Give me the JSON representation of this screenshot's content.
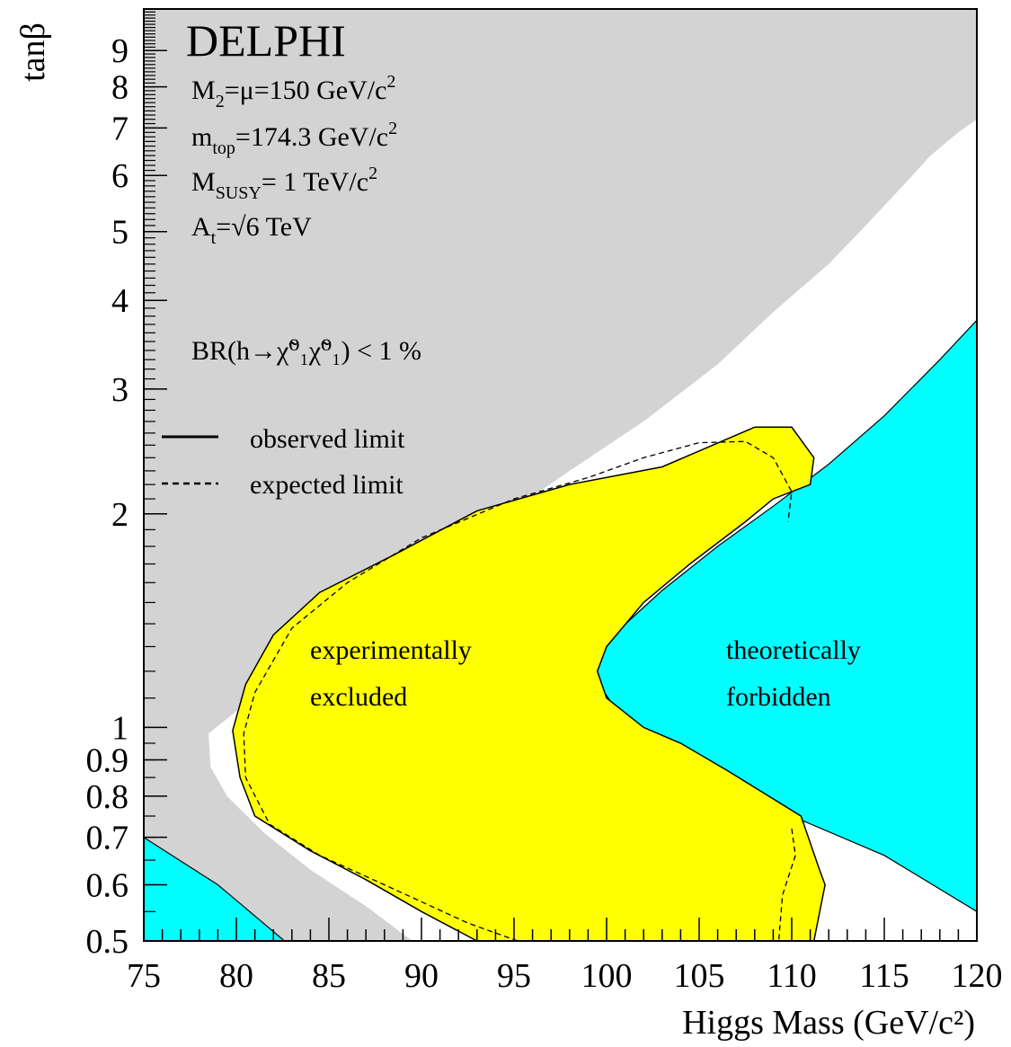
{
  "chart_data": {
    "type": "area",
    "title": "DELPHI",
    "xlabel": "Higgs Mass (GeV/c²)",
    "ylabel": "tanβ",
    "xlim": [
      75,
      120
    ],
    "ylim": [
      0.5,
      10.3
    ],
    "yscale": "log",
    "grid": false,
    "x_ticks": [
      "75",
      "80",
      "85",
      "90",
      "95",
      "100",
      "105",
      "110",
      "115",
      "120"
    ],
    "y_ticks": [
      "0.5",
      "0.6",
      "0.7",
      "0.8",
      "0.9",
      "1",
      "2",
      "3",
      "4",
      "5",
      "6",
      "7",
      "8",
      "9"
    ],
    "parameters": [
      {
        "main": "M",
        "sub": "2",
        "rest": "=μ=150 GeV/c",
        "sup": "2"
      },
      {
        "main": "m",
        "sub": "top",
        "rest": "=174.3 GeV/c",
        "sup": "2"
      },
      {
        "main": "M",
        "sub": "SUSY",
        "rest": "= 1 TeV/c",
        "sup": "2"
      },
      {
        "main": "A",
        "sub": "t",
        "rest": "=√6 TeV",
        "sup": ""
      }
    ],
    "br_label": "BR(h→χ̃⁰₁χ̃⁰₁) < 1 %",
    "legend": {
      "placement": "left",
      "entries": [
        {
          "label": "observed limit",
          "style": "solid"
        },
        {
          "label": "expected limit",
          "style": "dashed"
        }
      ]
    },
    "region_labels": {
      "experimental": [
        "experimentally",
        "excluded"
      ],
      "theoretical": [
        "theoretically",
        "forbidden"
      ]
    },
    "colors": {
      "grey": "#d3d3d3",
      "yellow": "#ffff00",
      "cyan": "#00ffff",
      "white": "#ffffff"
    },
    "regions": {
      "grey_upper": {
        "color": "grey",
        "points": [
          [
            75,
            10.3
          ],
          [
            120,
            10.3
          ],
          [
            120,
            7.2
          ],
          [
            119,
            6.9
          ],
          [
            117.5,
            6.4
          ],
          [
            116,
            5.8
          ],
          [
            114,
            5.1
          ],
          [
            112,
            4.5
          ],
          [
            109,
            3.85
          ],
          [
            106,
            3.25
          ],
          [
            102,
            2.7
          ],
          [
            98,
            2.3
          ],
          [
            94,
            1.95
          ],
          [
            90,
            1.62
          ],
          [
            86,
            1.38
          ],
          [
            83,
            1.2
          ],
          [
            80.5,
            1.08
          ],
          [
            78.5,
            0.98
          ],
          [
            78.6,
            0.88
          ],
          [
            79.5,
            0.8
          ],
          [
            81.5,
            0.71
          ],
          [
            84,
            0.63
          ],
          [
            87,
            0.56
          ],
          [
            89.5,
            0.5
          ],
          [
            75,
            0.5
          ]
        ]
      },
      "cyan_theory": {
        "color": "cyan",
        "points": [
          [
            120,
            3.75
          ],
          [
            118,
            3.3
          ],
          [
            115,
            2.75
          ],
          [
            112,
            2.35
          ],
          [
            109,
            2.05
          ],
          [
            106,
            1.8
          ],
          [
            103,
            1.56
          ],
          [
            100.5,
            1.36
          ],
          [
            99.5,
            1.25
          ],
          [
            99.5,
            1.16
          ],
          [
            100.5,
            1.06
          ],
          [
            103,
            0.95
          ],
          [
            106,
            0.85
          ],
          [
            110,
            0.75
          ],
          [
            115,
            0.66
          ],
          [
            120,
            0.55
          ],
          [
            120,
            3.75
          ]
        ]
      },
      "cyan_corner": {
        "color": "cyan",
        "points": [
          [
            75,
            0.7
          ],
          [
            79,
            0.6
          ],
          [
            82.6,
            0.5
          ],
          [
            75,
            0.5
          ]
        ]
      },
      "yellow_excluded": {
        "color": "yellow",
        "points": [
          [
            108,
            2.65
          ],
          [
            110,
            2.65
          ],
          [
            111.2,
            2.4
          ],
          [
            111,
            2.2
          ],
          [
            109,
            2.1
          ],
          [
            107.5,
            1.95
          ],
          [
            104.5,
            1.7
          ],
          [
            102,
            1.5
          ],
          [
            100,
            1.3
          ],
          [
            99.5,
            1.2
          ],
          [
            100,
            1.1
          ],
          [
            102,
            1.0
          ],
          [
            104,
            0.95
          ],
          [
            106.5,
            0.87
          ],
          [
            110.5,
            0.75
          ],
          [
            111.5,
            0.63
          ],
          [
            111.8,
            0.6
          ],
          [
            111.2,
            0.5
          ],
          [
            93,
            0.5
          ],
          [
            90,
            0.55
          ],
          [
            87,
            0.61
          ],
          [
            84,
            0.67
          ],
          [
            81,
            0.75
          ],
          [
            80.2,
            0.85
          ],
          [
            79.8,
            0.99
          ],
          [
            80.5,
            1.15
          ],
          [
            82,
            1.35
          ],
          [
            84.5,
            1.55
          ],
          [
            88.5,
            1.75
          ],
          [
            93,
            2.02
          ],
          [
            98,
            2.2
          ],
          [
            103,
            2.33
          ],
          [
            108,
            2.65
          ]
        ]
      }
    },
    "series": [
      {
        "name": "observed limit",
        "style": "solid",
        "points": [
          [
            108,
            2.65
          ],
          [
            110,
            2.65
          ],
          [
            111.2,
            2.4
          ],
          [
            111,
            2.2
          ],
          [
            109,
            2.1
          ],
          [
            107.5,
            1.95
          ],
          [
            104.5,
            1.7
          ],
          [
            102,
            1.5
          ],
          [
            100,
            1.3
          ],
          [
            99.5,
            1.2
          ],
          [
            100,
            1.1
          ],
          [
            102,
            1.0
          ],
          [
            104,
            0.95
          ],
          [
            106.5,
            0.87
          ],
          [
            110.5,
            0.75
          ],
          [
            111.5,
            0.63
          ],
          [
            111.8,
            0.6
          ],
          [
            111.2,
            0.5
          ],
          [
            93,
            0.5
          ],
          [
            90,
            0.55
          ],
          [
            87,
            0.61
          ],
          [
            84,
            0.67
          ],
          [
            81,
            0.75
          ],
          [
            80.2,
            0.85
          ],
          [
            79.8,
            0.99
          ],
          [
            80.5,
            1.15
          ],
          [
            82,
            1.35
          ],
          [
            84.5,
            1.55
          ],
          [
            88.5,
            1.75
          ],
          [
            93,
            2.02
          ],
          [
            98,
            2.2
          ],
          [
            103,
            2.33
          ],
          [
            108,
            2.65
          ]
        ]
      },
      {
        "name": "expected limit",
        "style": "dashed",
        "points": [
          [
            110,
            0.72
          ],
          [
            110.2,
            0.66
          ],
          [
            109.5,
            0.58
          ],
          [
            109.3,
            0.5
          ]
        ]
      },
      {
        "name": "expected limit",
        "style": "dashed",
        "points": [
          [
            95.2,
            0.5
          ],
          [
            92.5,
            0.53
          ],
          [
            88,
            0.6
          ],
          [
            84.5,
            0.66
          ],
          [
            81.8,
            0.73
          ],
          [
            80.5,
            0.85
          ],
          [
            80.4,
            0.98
          ],
          [
            81,
            1.12
          ],
          [
            83,
            1.38
          ],
          [
            86,
            1.6
          ],
          [
            90,
            1.85
          ],
          [
            95,
            2.1
          ],
          [
            99,
            2.25
          ],
          [
            102,
            2.4
          ],
          [
            105,
            2.52
          ],
          [
            107.5,
            2.53
          ],
          [
            109,
            2.4
          ],
          [
            110,
            2.15
          ],
          [
            109.8,
            1.95
          ]
        ]
      }
    ]
  }
}
